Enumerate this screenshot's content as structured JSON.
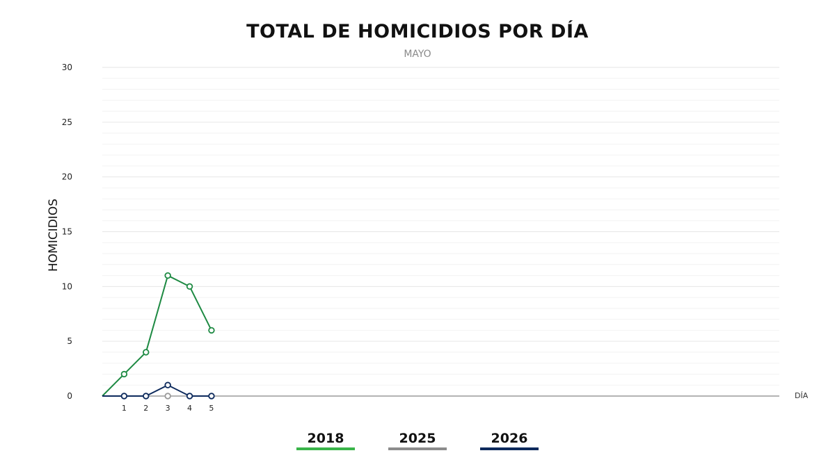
{
  "chart_data": {
    "type": "line",
    "title": "TOTAL DE HOMICIDIOS POR DÍA",
    "subtitle": "MAYO",
    "xlabel": "DÍA",
    "ylabel": "HOMICIDIOS",
    "xlim": [
      0,
      31
    ],
    "ylim": [
      0,
      30
    ],
    "x_ticks": [
      1,
      2,
      3,
      4,
      5
    ],
    "y_ticks": [
      0,
      5,
      10,
      15,
      20,
      25,
      30
    ],
    "grid": true,
    "legend_position": "bottom",
    "series": [
      {
        "name": "2018",
        "color": "#1e8a43",
        "legend_color": "#3ab54a",
        "x": [
          0,
          1,
          2,
          3,
          4,
          5
        ],
        "values": [
          0,
          2,
          4,
          11,
          10,
          6
        ],
        "markers": [
          1,
          2,
          3,
          4,
          5
        ]
      },
      {
        "name": "2025",
        "color": "#9a9a9a",
        "legend_color": "#8c8c8c",
        "x": [
          3
        ],
        "values": [
          0
        ],
        "markers": [
          3
        ]
      },
      {
        "name": "2026",
        "color": "#0d2a5c",
        "legend_color": "#0d2a5c",
        "x": [
          0,
          1,
          2,
          3,
          4,
          5
        ],
        "values": [
          0,
          0,
          0,
          1,
          0,
          0
        ],
        "markers": [
          1,
          2,
          3,
          4,
          5
        ]
      }
    ]
  }
}
